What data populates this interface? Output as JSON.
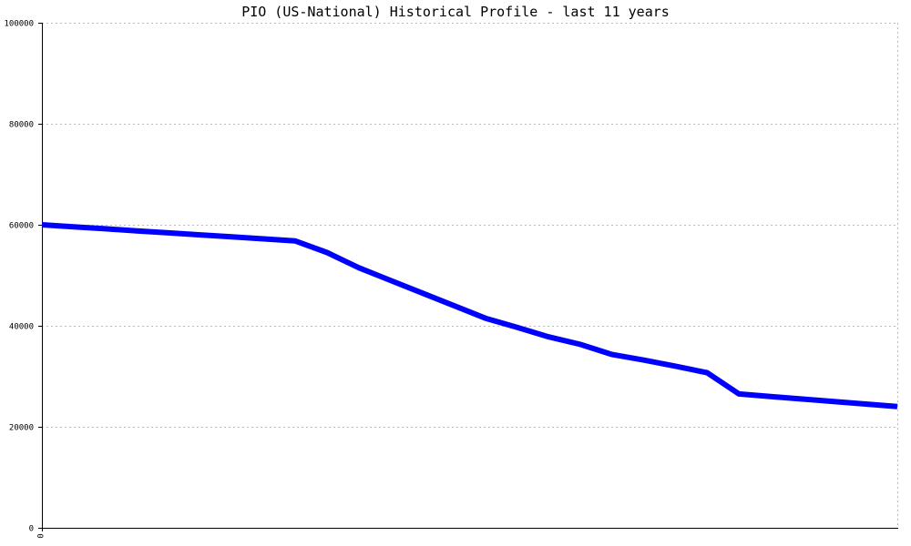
{
  "chart_data": {
    "type": "line",
    "title": "PIO (US-National) Historical Profile - last 11 years",
    "xlabel": "",
    "ylabel": "",
    "ylim": [
      0,
      100000
    ],
    "yticks": [
      "0",
      "20000",
      "40000",
      "60000",
      "80000",
      "100000"
    ],
    "xticks": [
      "0"
    ],
    "grid": true,
    "line_color": "#0000ff",
    "series": [
      {
        "values": [
          60000,
          59600,
          59200,
          58800,
          58400,
          58000,
          57600,
          57200,
          56800,
          54500,
          51500,
          49000,
          46500,
          44000,
          41500,
          39700,
          37800,
          36300,
          34300,
          33200,
          32000,
          30700,
          26500,
          26000,
          25500,
          25000,
          24500,
          24000
        ]
      }
    ]
  }
}
